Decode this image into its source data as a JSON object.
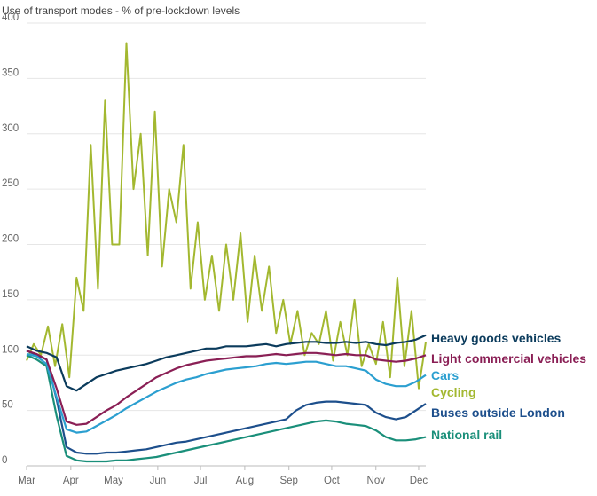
{
  "chart_data": {
    "type": "line",
    "title": "Use of transport modes - % of pre-lockdown levels",
    "xlabel": "",
    "ylabel": "",
    "ylim": [
      0,
      400
    ],
    "yticks": [
      0,
      50,
      100,
      150,
      200,
      250,
      300,
      350,
      400
    ],
    "xlim": [
      0,
      280
    ],
    "xticks": [
      {
        "label": "Mar",
        "day": 0
      },
      {
        "label": "Apr",
        "day": 31
      },
      {
        "label": "May",
        "day": 61
      },
      {
        "label": "Jun",
        "day": 92
      },
      {
        "label": "Jul",
        "day": 122
      },
      {
        "label": "Aug",
        "day": 153
      },
      {
        "label": "Sep",
        "day": 184
      },
      {
        "label": "Oct",
        "day": 214
      },
      {
        "label": "Nov",
        "day": 245
      },
      {
        "label": "Dec",
        "day": 275
      }
    ],
    "series": [
      {
        "name": "Heavy goods vehicles",
        "color": "#0b3b5c",
        "x": [
          0,
          7,
          14,
          21,
          28,
          35,
          42,
          49,
          56,
          63,
          70,
          77,
          84,
          91,
          98,
          105,
          112,
          119,
          126,
          133,
          140,
          147,
          154,
          161,
          168,
          175,
          182,
          189,
          196,
          203,
          210,
          217,
          224,
          231,
          238,
          245,
          252,
          259,
          266,
          273,
          280
        ],
        "values": [
          108,
          104,
          102,
          98,
          72,
          68,
          74,
          80,
          83,
          86,
          88,
          90,
          92,
          95,
          98,
          100,
          102,
          104,
          106,
          106,
          108,
          108,
          108,
          109,
          110,
          108,
          110,
          111,
          112,
          112,
          111,
          111,
          112,
          111,
          112,
          110,
          109,
          111,
          112,
          114,
          118
        ]
      },
      {
        "name": "Light commercial vehicles",
        "color": "#8a1f55",
        "x": [
          0,
          7,
          14,
          21,
          28,
          35,
          42,
          49,
          56,
          63,
          70,
          77,
          84,
          91,
          98,
          105,
          112,
          119,
          126,
          133,
          140,
          147,
          154,
          161,
          168,
          175,
          182,
          189,
          196,
          203,
          210,
          217,
          224,
          231,
          238,
          245,
          252,
          259,
          266,
          273,
          280
        ],
        "values": [
          104,
          101,
          96,
          70,
          40,
          37,
          38,
          44,
          50,
          55,
          62,
          68,
          74,
          80,
          84,
          88,
          91,
          93,
          95,
          96,
          97,
          98,
          99,
          99,
          100,
          101,
          100,
          101,
          102,
          102,
          101,
          100,
          101,
          100,
          100,
          96,
          95,
          94,
          95,
          97,
          100
        ]
      },
      {
        "name": "Cars",
        "color": "#2b9fd0",
        "x": [
          0,
          7,
          14,
          21,
          28,
          35,
          42,
          49,
          56,
          63,
          70,
          77,
          84,
          91,
          98,
          105,
          112,
          119,
          126,
          133,
          140,
          147,
          154,
          161,
          168,
          175,
          182,
          189,
          196,
          203,
          210,
          217,
          224,
          231,
          238,
          245,
          252,
          259,
          266,
          273,
          280
        ],
        "values": [
          101,
          99,
          92,
          62,
          33,
          30,
          31,
          36,
          41,
          46,
          52,
          57,
          62,
          67,
          71,
          75,
          78,
          80,
          83,
          85,
          87,
          88,
          89,
          90,
          92,
          93,
          92,
          93,
          94,
          94,
          92,
          90,
          90,
          88,
          86,
          78,
          74,
          72,
          72,
          76,
          82
        ]
      },
      {
        "name": "Cycling",
        "color": "#a3b830",
        "x": [
          0,
          5,
          10,
          15,
          20,
          25,
          30,
          35,
          40,
          45,
          50,
          55,
          60,
          65,
          70,
          75,
          80,
          85,
          90,
          95,
          100,
          105,
          110,
          115,
          120,
          125,
          130,
          135,
          140,
          145,
          150,
          155,
          160,
          165,
          170,
          175,
          180,
          185,
          190,
          195,
          200,
          205,
          210,
          215,
          220,
          225,
          230,
          235,
          240,
          245,
          250,
          255,
          260,
          265,
          270,
          275,
          280
        ],
        "values": [
          95,
          110,
          100,
          126,
          90,
          128,
          80,
          170,
          140,
          290,
          160,
          330,
          200,
          200,
          382,
          250,
          300,
          190,
          320,
          180,
          250,
          220,
          290,
          160,
          220,
          150,
          190,
          140,
          200,
          150,
          210,
          130,
          190,
          140,
          180,
          120,
          150,
          110,
          140,
          100,
          120,
          110,
          140,
          95,
          130,
          100,
          150,
          90,
          110,
          92,
          130,
          80,
          170,
          90,
          140,
          70,
          112
        ]
      },
      {
        "name": "Buses outside London",
        "color": "#1d4f8c",
        "x": [
          0,
          7,
          14,
          21,
          28,
          35,
          42,
          49,
          56,
          63,
          70,
          77,
          84,
          91,
          98,
          105,
          112,
          119,
          126,
          133,
          140,
          147,
          154,
          161,
          168,
          175,
          182,
          189,
          196,
          203,
          210,
          217,
          224,
          231,
          238,
          245,
          252,
          259,
          266,
          273,
          280
        ],
        "values": [
          104,
          100,
          96,
          60,
          17,
          12,
          11,
          11,
          12,
          12,
          13,
          14,
          15,
          17,
          19,
          21,
          22,
          24,
          26,
          28,
          30,
          32,
          34,
          36,
          38,
          40,
          42,
          50,
          55,
          57,
          58,
          58,
          57,
          56,
          55,
          48,
          44,
          42,
          44,
          50,
          56
        ]
      },
      {
        "name": "National rail",
        "color": "#1a8f7a",
        "x": [
          0,
          7,
          14,
          21,
          28,
          35,
          42,
          49,
          56,
          63,
          70,
          77,
          84,
          91,
          98,
          105,
          112,
          119,
          126,
          133,
          140,
          147,
          154,
          161,
          168,
          175,
          182,
          189,
          196,
          203,
          210,
          217,
          224,
          231,
          238,
          245,
          252,
          259,
          266,
          273,
          280
        ],
        "values": [
          100,
          96,
          90,
          45,
          9,
          5,
          4,
          4,
          4,
          5,
          5,
          6,
          7,
          8,
          10,
          12,
          14,
          16,
          18,
          20,
          22,
          24,
          26,
          28,
          30,
          32,
          34,
          36,
          38,
          40,
          41,
          40,
          38,
          37,
          36,
          32,
          26,
          23,
          23,
          24,
          26
        ]
      }
    ]
  }
}
